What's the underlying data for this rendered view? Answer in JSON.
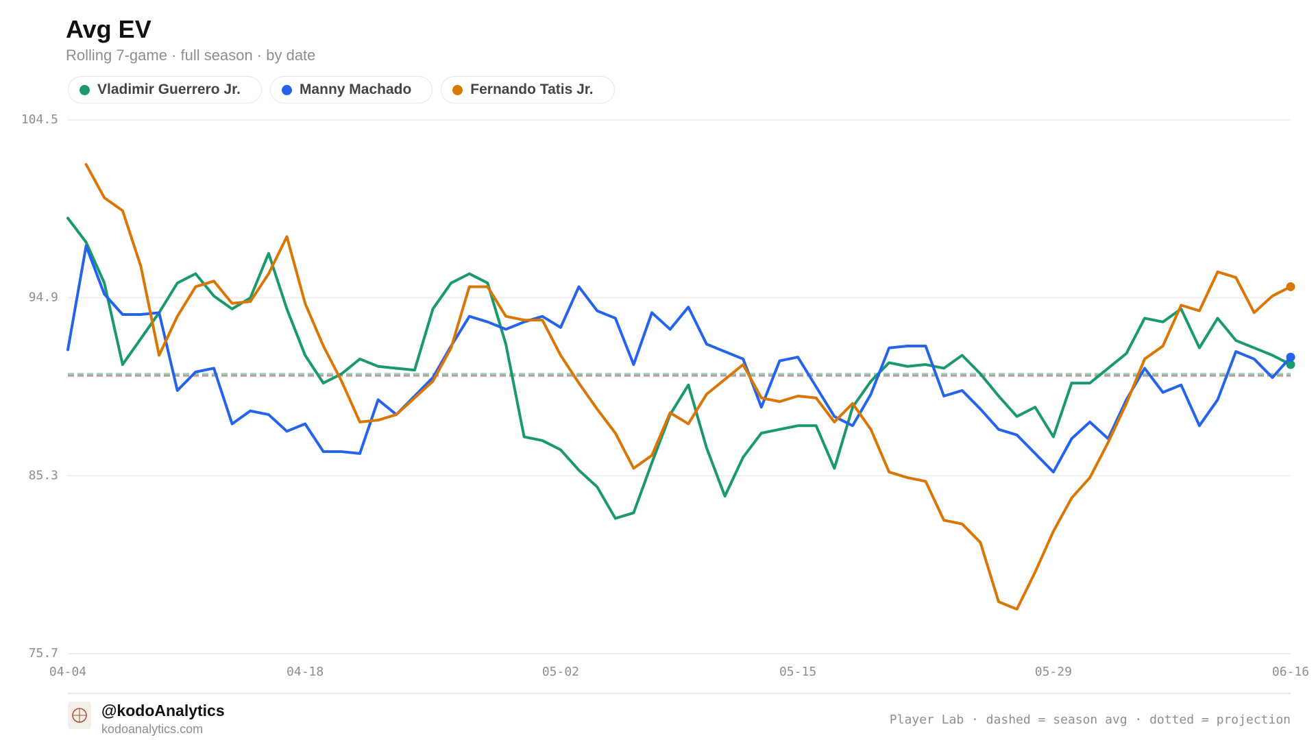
{
  "chart_data": {
    "type": "line",
    "title": "Avg EV",
    "subtitle": "Rolling 7-game · full season · by date",
    "categories": [
      "04-04",
      null,
      null,
      null,
      null,
      null,
      null,
      null,
      null,
      null,
      null,
      null,
      null,
      "04-18",
      null,
      null,
      null,
      null,
      null,
      null,
      null,
      null,
      null,
      null,
      null,
      null,
      null,
      "05-02",
      null,
      null,
      null,
      null,
      null,
      null,
      null,
      null,
      null,
      null,
      null,
      null,
      "05-15",
      null,
      null,
      null,
      null,
      null,
      null,
      null,
      null,
      null,
      null,
      null,
      null,
      null,
      "05-29",
      null,
      null,
      null,
      null,
      null,
      null,
      null,
      null,
      null,
      null,
      null,
      null,
      "06-16"
    ],
    "ylim": [
      75.7,
      104.5
    ],
    "yticks": [
      75.7,
      85.3,
      94.9,
      104.5
    ],
    "grid": true,
    "series": [
      {
        "name": "Vladimir Guerrero Jr.",
        "color": "#1a9a6c",
        "season_avg": 90.8,
        "values": [
          99.2,
          97.9,
          95.7,
          91.3,
          92.7,
          94.1,
          95.7,
          96.2,
          95.0,
          94.3,
          94.9,
          97.3,
          94.3,
          91.8,
          90.3,
          90.8,
          91.6,
          91.2,
          91.1,
          91.0,
          94.3,
          95.7,
          96.2,
          95.7,
          92.4,
          87.4,
          87.2,
          86.7,
          85.6,
          84.7,
          83.0,
          83.3,
          86.0,
          88.6,
          90.2,
          86.8,
          84.2,
          86.3,
          87.6,
          87.8,
          88.0,
          88.0,
          85.7,
          89.0,
          90.4,
          91.4,
          91.2,
          91.3,
          91.1,
          91.8,
          90.8,
          89.6,
          88.5,
          89.0,
          87.4,
          90.3,
          90.3,
          91.1,
          91.9,
          93.8,
          93.6,
          94.3,
          92.2,
          93.8,
          92.6,
          92.2,
          91.8,
          91.3
        ]
      },
      {
        "name": "Manny Machado",
        "color": "#2563eb",
        "season_avg": 90.7,
        "values": [
          92.1,
          97.7,
          95.1,
          94.0,
          94.0,
          94.1,
          89.9,
          90.9,
          91.1,
          88.1,
          88.8,
          88.6,
          87.7,
          88.1,
          86.6,
          86.6,
          86.5,
          89.4,
          88.6,
          89.6,
          90.6,
          92.3,
          93.9,
          93.6,
          93.2,
          93.6,
          93.9,
          93.3,
          95.5,
          94.2,
          93.8,
          91.3,
          94.1,
          93.2,
          94.4,
          92.4,
          92.0,
          91.6,
          89.0,
          91.5,
          91.7,
          90.1,
          88.5,
          88.0,
          89.7,
          92.2,
          92.3,
          92.3,
          89.6,
          89.9,
          88.9,
          87.8,
          87.5,
          86.5,
          85.5,
          87.3,
          88.2,
          87.3,
          89.4,
          91.1,
          89.8,
          90.2,
          88.0,
          89.4,
          92.0,
          91.6,
          90.6,
          91.7
        ]
      },
      {
        "name": "Fernando Tatis Jr.",
        "color": "#d97706",
        "season_avg": 90.7,
        "values": [
          null,
          102.1,
          100.3,
          99.6,
          96.6,
          91.8,
          93.9,
          95.5,
          95.8,
          94.6,
          94.7,
          96.2,
          98.2,
          94.6,
          92.3,
          90.4,
          88.2,
          88.3,
          88.6,
          89.5,
          90.4,
          92.2,
          95.5,
          95.5,
          93.9,
          93.7,
          93.7,
          91.8,
          90.3,
          88.9,
          87.6,
          85.7,
          86.4,
          88.7,
          88.1,
          89.7,
          90.5,
          91.3,
          89.5,
          89.3,
          89.6,
          89.5,
          88.2,
          89.2,
          87.8,
          85.5,
          85.2,
          85.0,
          82.9,
          82.7,
          81.7,
          78.5,
          78.1,
          80.1,
          82.3,
          84.1,
          85.2,
          87.1,
          89.2,
          91.6,
          92.3,
          94.5,
          94.2,
          96.3,
          96.0,
          94.1,
          95.0,
          95.5
        ]
      }
    ],
    "footer": {
      "handle": "@kodoAnalytics",
      "site": "kodoanalytics.com",
      "note": "Player Lab · dashed = season avg · dotted = projection"
    }
  }
}
